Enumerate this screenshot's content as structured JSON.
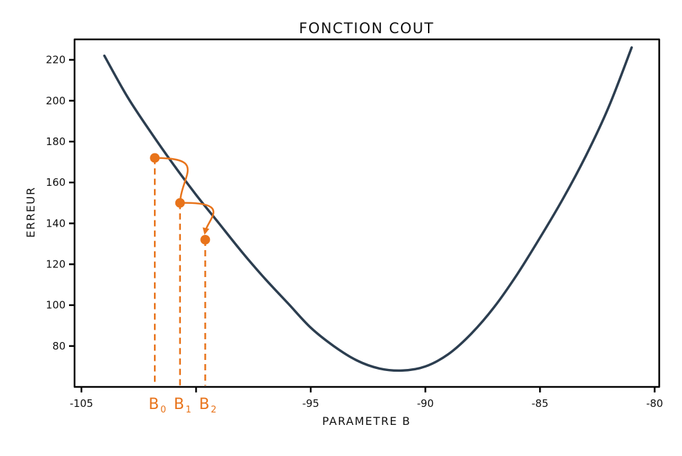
{
  "chart_data": {
    "type": "line",
    "title": "FONCTION COUT",
    "xlabel": "PARAMETRE B",
    "ylabel": "ERREUR",
    "xlim": [
      -105.3,
      -79.8
    ],
    "ylim": [
      60,
      230
    ],
    "xticks": [
      -105,
      -100,
      -95,
      -90,
      -85,
      -80
    ],
    "xtick_labels": [
      "-105",
      "",
      "-95",
      "-90",
      "-85",
      "-80"
    ],
    "yticks": [
      80,
      100,
      120,
      140,
      160,
      180,
      200,
      220
    ],
    "ytick_labels": [
      "80",
      "100",
      "120",
      "140",
      "160",
      "180",
      "200",
      "220"
    ],
    "grid": false,
    "series": [
      {
        "x": [
          -104,
          -103,
          -102,
          -101,
          -100,
          -99,
          -98,
          -97,
          -96,
          -95,
          -94,
          -93,
          -92,
          -91,
          -90,
          -89,
          -88,
          -87,
          -86,
          -85,
          -84,
          -83,
          -82,
          -81
        ],
        "y": [
          222,
          202,
          185,
          169,
          154,
          140,
          126,
          113,
          101,
          89,
          80,
          73,
          69,
          68,
          70,
          76,
          86,
          99,
          115,
          133,
          152,
          173,
          197,
          226
        ],
        "color": "#2c3e50"
      }
    ],
    "points": [
      {
        "label": "B",
        "sub": "0",
        "x": -101.8,
        "y": 172
      },
      {
        "label": "B",
        "sub": "1",
        "x": -100.7,
        "y": 150
      },
      {
        "label": "B",
        "sub": "2",
        "x": -99.6,
        "y": 132
      }
    ],
    "point_color": "#e8731a"
  }
}
